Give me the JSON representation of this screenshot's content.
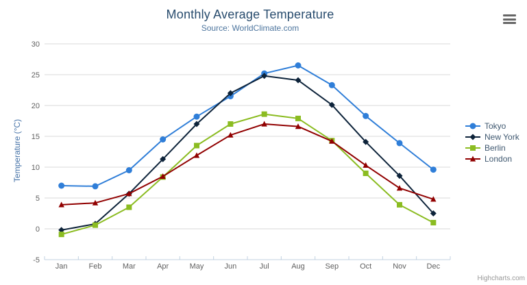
{
  "chart": {
    "title": "Monthly Average Temperature",
    "subtitle": "Source: WorldClimate.com",
    "credits_label": "Highcharts.com",
    "export_icon": "hamburger-menu-icon"
  },
  "chart_data": {
    "type": "line",
    "title": "Monthly Average Temperature",
    "subtitle": "Source: WorldClimate.com",
    "xlabel": "",
    "ylabel": "Temperature (°C)",
    "categories": [
      "Jan",
      "Feb",
      "Mar",
      "Apr",
      "May",
      "Jun",
      "Jul",
      "Aug",
      "Sep",
      "Oct",
      "Nov",
      "Dec"
    ],
    "series": [
      {
        "name": "Tokyo",
        "color": "#2f7ed8",
        "marker": "circle",
        "values": [
          7.0,
          6.9,
          9.5,
          14.5,
          18.2,
          21.5,
          25.2,
          26.5,
          23.3,
          18.3,
          13.9,
          9.6
        ]
      },
      {
        "name": "New York",
        "color": "#0d233a",
        "marker": "diamond",
        "values": [
          -0.2,
          0.8,
          5.7,
          11.3,
          17.0,
          22.0,
          24.8,
          24.1,
          20.1,
          14.1,
          8.6,
          2.5
        ]
      },
      {
        "name": "Berlin",
        "color": "#8bbc21",
        "marker": "square",
        "values": [
          -0.9,
          0.6,
          3.5,
          8.4,
          13.5,
          17.0,
          18.6,
          17.9,
          14.3,
          9.0,
          3.9,
          1.0
        ]
      },
      {
        "name": "London",
        "color": "#910000",
        "marker": "triangle",
        "values": [
          3.9,
          4.2,
          5.7,
          8.5,
          11.9,
          15.2,
          17.0,
          16.6,
          14.2,
          10.3,
          6.6,
          4.8
        ]
      }
    ],
    "ylim": [
      -5,
      30
    ],
    "ytick_step": 5,
    "grid": true,
    "legend_position": "right"
  },
  "style": {
    "grid_color": "#d8d8d8",
    "axis_line_color": "#c0d0e0",
    "tick_label_color": "#606060",
    "legend_text_color": "#3e576f",
    "title_color": "#274b6d",
    "subtitle_color": "#4d759e",
    "yaxis_title_color": "#4572a7",
    "credits_color": "#999999"
  }
}
